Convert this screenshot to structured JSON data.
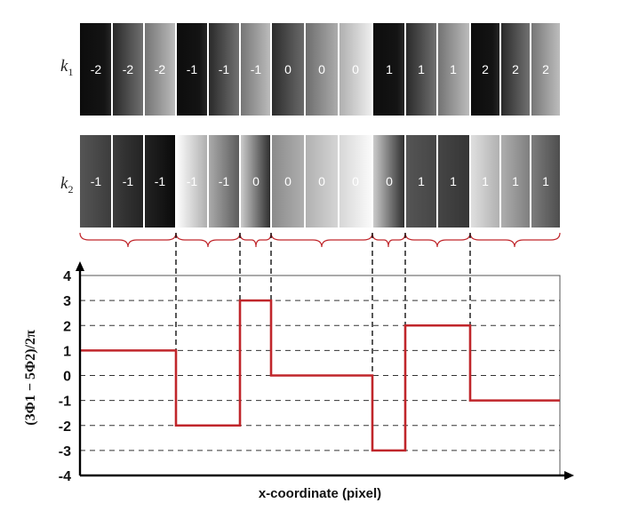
{
  "rows": [
    {
      "label": "k",
      "sub": "1",
      "values": [
        "-2",
        "-2",
        "-2",
        "-1",
        "-1",
        "-1",
        "0",
        "0",
        "0",
        "1",
        "1",
        "1",
        "2",
        "2",
        "2"
      ]
    },
    {
      "label": "k",
      "sub": "2",
      "values": [
        "-1",
        "-1",
        "-1",
        "-1",
        "-1",
        "0",
        "0",
        "0",
        "0",
        "0",
        "1",
        "1",
        "1",
        "1",
        "1"
      ]
    }
  ],
  "chart_data": {
    "type": "line",
    "step": true,
    "xlabel": "x-coordinate (pixel)",
    "ylabel": "(3Φ1 − 5Φ2)/2π",
    "ylim": [
      -4,
      4
    ],
    "yticks": [
      "4",
      "3",
      "2",
      "1",
      "0",
      "-1",
      "-2",
      "-3",
      "-4"
    ],
    "grid": "horizontal-dashed",
    "line_color": "#c0262b",
    "segments": [
      1,
      -2,
      3,
      0,
      -3,
      2,
      -1
    ]
  }
}
